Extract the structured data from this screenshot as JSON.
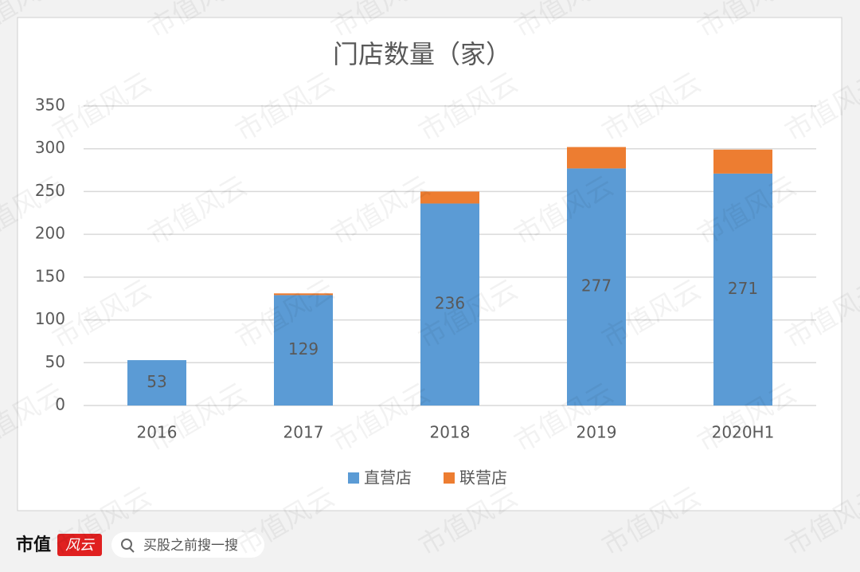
{
  "chart_data": {
    "type": "stacked-bar",
    "title": "门店数量（家）",
    "categories": [
      "2016",
      "2017",
      "2018",
      "2019",
      "2020H1"
    ],
    "series": [
      {
        "name": "直营店",
        "color": "#5b9bd5",
        "values": [
          53,
          129,
          236,
          277,
          271
        ]
      },
      {
        "name": "联营店",
        "color": "#ed7d31",
        "values": [
          0,
          2,
          14,
          25,
          28
        ]
      }
    ],
    "ylim": [
      0,
      350
    ],
    "yticks": [
      0,
      50,
      100,
      150,
      200,
      250,
      300,
      350
    ],
    "grid": true,
    "legend": "bottom"
  },
  "footer": {
    "brand": "市值",
    "logo": "风云",
    "search": "买股之前搜一搜"
  },
  "watermark": "市值风云"
}
